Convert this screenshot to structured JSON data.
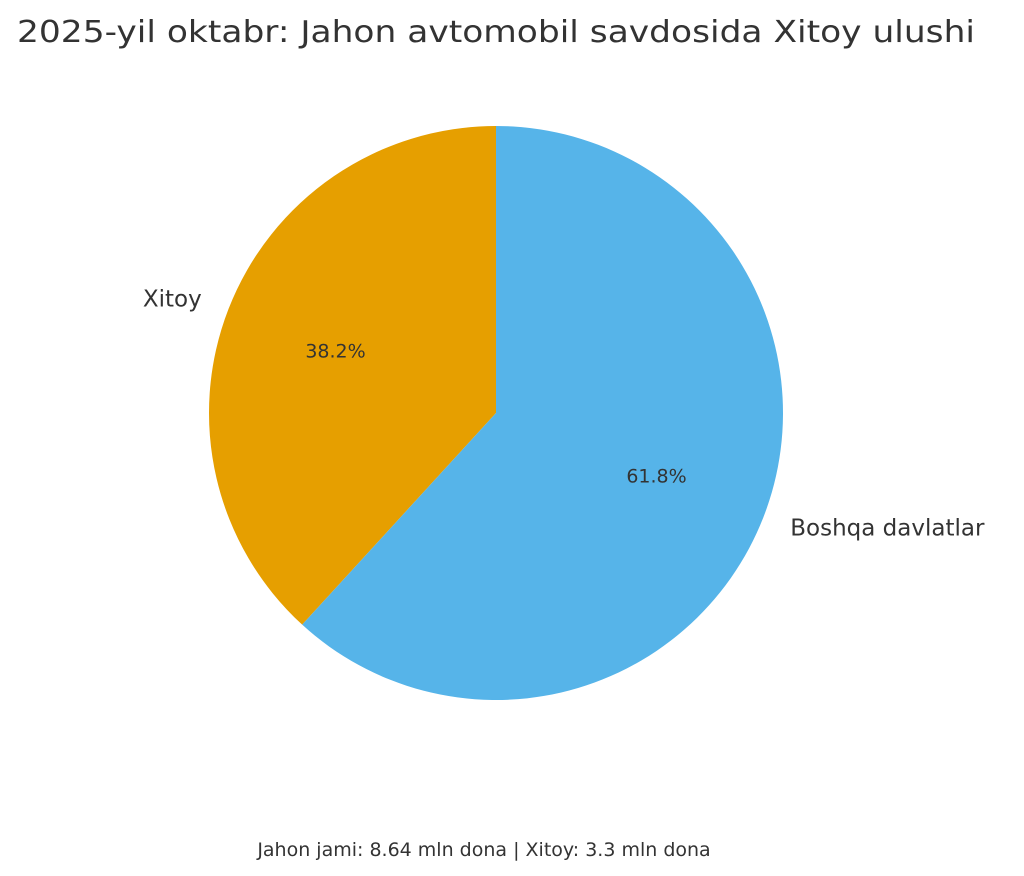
{
  "chart_data": {
    "type": "pie",
    "title": "2025-yil oktabr: Jahon avtomobil savdosida Xitoy ulushi",
    "footnote": "Jahon jami: 8.64 mln dona | Xitoy: 3.3 mln dona",
    "start_angle_deg": 90,
    "direction": "counterclockwise",
    "slices": [
      {
        "label": "Xitoy",
        "value": 38.2,
        "pct_label": "38.2%",
        "color": "#E69F00"
      },
      {
        "label": "Boshqa davlatlar",
        "value": 61.8,
        "pct_label": "61.8%",
        "color": "#56B4E9"
      }
    ]
  }
}
